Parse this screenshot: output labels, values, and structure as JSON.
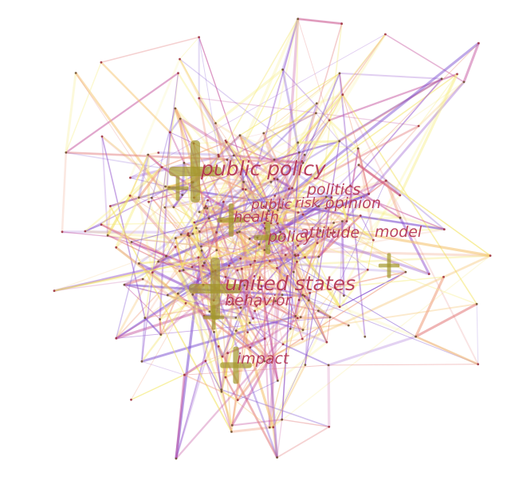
{
  "network": {
    "labels": [
      "public policy",
      "politics",
      "public",
      "risk",
      "opinion",
      "health",
      "attitude",
      "model",
      "policy",
      "united states",
      "behavior",
      "impact"
    ],
    "colors": {
      "label": "#b02a4a",
      "hub_marker": "#a3962a",
      "edge_palette": [
        "#7a4ccf",
        "#9b5fd0",
        "#c24b9a",
        "#e07070",
        "#f0a080",
        "#f5c26b",
        "#f2e25c",
        "#f7ef8a"
      ],
      "background": "#ffffff"
    }
  }
}
